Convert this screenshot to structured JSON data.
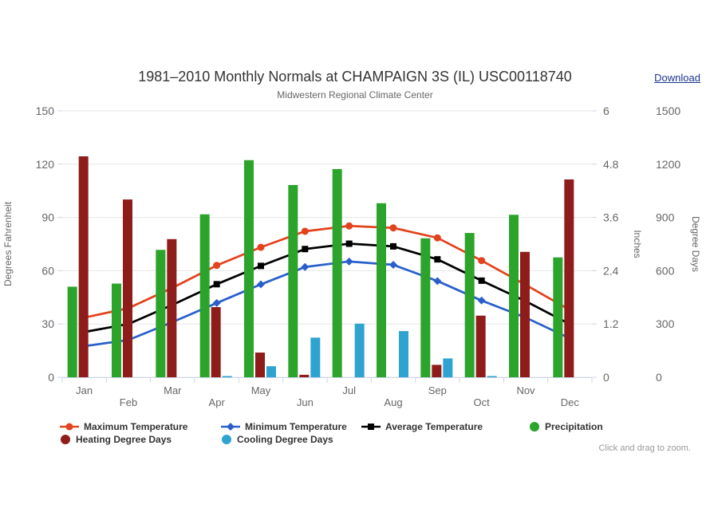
{
  "header": {
    "title": "1981–2010 Monthly Normals at CHAMPAIGN 3S (IL) USC00118740",
    "subtitle": "Midwestern Regional Climate Center",
    "download_label": "Download"
  },
  "hint": "Click and drag to zoom.",
  "colors": {
    "maximum_temperature": "#e2431e",
    "minimum_temperature": "#2a5fcb",
    "average_temperature": "#000000",
    "precipitation": "#2ca42c",
    "heating_degree_days": "#8e1c1a",
    "cooling_degree_days": "#2fa3cf",
    "gridline": "#e6e6e6",
    "axis_line": "#ccd6eb",
    "label_text": "#666666",
    "title_text": "#333333",
    "download_link": "#1b338f",
    "hint_text": "#999999"
  },
  "chart_data": {
    "type": "combo: 3 line series (temperature) + 3 grouped bar series (precipitation, degree days)",
    "categories": [
      "Jan",
      "Feb",
      "Mar",
      "Apr",
      "May",
      "Jun",
      "Jul",
      "Aug",
      "Sep",
      "Oct",
      "Nov",
      "Dec"
    ],
    "x_label_stagger": "two rows: odd months upper row, even months lower row",
    "grid": true,
    "legend_position": "bottom",
    "legend_rows": [
      [
        0,
        1,
        2,
        3
      ],
      [
        4,
        5
      ]
    ],
    "y_axes": [
      {
        "id": "fahrenheit",
        "title": "Degrees Fahrenheit",
        "side": "left",
        "min": 0,
        "max": 150,
        "ticks": [
          "0",
          "30",
          "60",
          "90",
          "120",
          "150"
        ]
      },
      {
        "id": "inches",
        "title": "Inches",
        "side": "right",
        "min": 0,
        "max": 6,
        "ticks": [
          "0",
          "1.2",
          "2.4",
          "3.6",
          "4.8",
          "6"
        ]
      },
      {
        "id": "degree_days",
        "title": "Degree Days",
        "side": "right",
        "min": 0,
        "max": 1500,
        "ticks": [
          "0",
          "300",
          "600",
          "900",
          "1200",
          "1500"
        ]
      }
    ],
    "series": [
      {
        "name": "Maximum Temperature",
        "type": "line",
        "marker": "circle",
        "axis": "fahrenheit",
        "color": "#e2431e",
        "values": [
          33.6,
          38.9,
          50.4,
          63.0,
          73.2,
          82.2,
          85.2,
          84.1,
          78.5,
          65.7,
          52.0,
          37.9
        ]
      },
      {
        "name": "Minimum Temperature",
        "type": "line",
        "marker": "diamond",
        "axis": "fahrenheit",
        "color": "#2a5fcb",
        "values": [
          17.5,
          21.0,
          31.1,
          41.8,
          52.3,
          62.1,
          65.2,
          63.3,
          54.2,
          43.2,
          33.6,
          21.9
        ]
      },
      {
        "name": "Average Temperature",
        "type": "line",
        "marker": "square",
        "axis": "fahrenheit",
        "color": "#000000",
        "values": [
          25.5,
          30.0,
          40.8,
          52.4,
          62.7,
          72.2,
          75.2,
          73.7,
          66.4,
          54.4,
          42.8,
          29.9
        ]
      },
      {
        "name": "Precipitation",
        "type": "bar",
        "axis": "inches",
        "color": "#2ca42c",
        "values": [
          2.04,
          2.11,
          2.87,
          3.67,
          4.89,
          4.33,
          4.69,
          3.92,
          3.13,
          3.25,
          3.66,
          2.7
        ]
      },
      {
        "name": "Heating Degree Days",
        "type": "bar",
        "axis": "degree_days",
        "color": "#8e1c1a",
        "values": [
          1244,
          1001,
          778,
          395,
          139,
          14,
          0,
          0,
          70,
          347,
          706,
          1114
        ]
      },
      {
        "name": "Cooling Degree Days",
        "type": "bar",
        "axis": "degree_days",
        "color": "#2fa3cf",
        "values": [
          0,
          0,
          0,
          3,
          62,
          223,
          302,
          260,
          106,
          6,
          0,
          0
        ]
      }
    ]
  }
}
